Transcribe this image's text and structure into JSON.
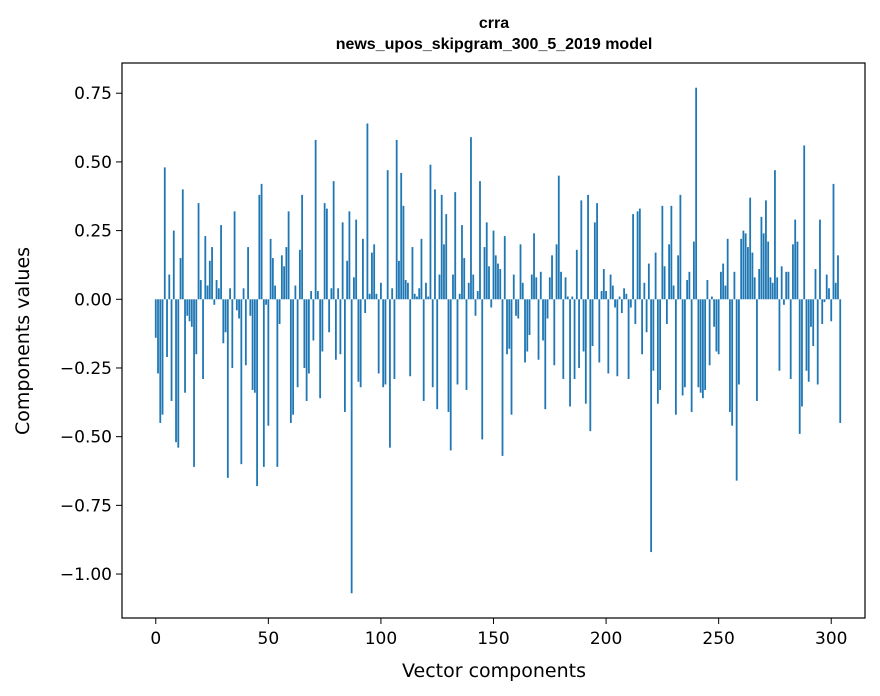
{
  "chart_data": {
    "type": "bar",
    "title": "crra",
    "subtitle": "news_upos_skipgram_300_5_2019 model",
    "xlabel": "Vector components",
    "ylabel": "Components values",
    "xlim": [
      -15,
      315
    ],
    "ylim": [
      -1.16,
      0.86
    ],
    "xticks": [
      0,
      50,
      100,
      150,
      200,
      250,
      300
    ],
    "yticks": [
      -1.0,
      -0.75,
      -0.5,
      -0.25,
      0.0,
      0.25,
      0.5,
      0.75
    ],
    "ytick_labels": [
      "−1.00",
      "−0.75",
      "−0.50",
      "−0.25",
      "0.00",
      "0.25",
      "0.50",
      "0.75"
    ],
    "xtick_labels": [
      "0",
      "50",
      "100",
      "150",
      "200",
      "250",
      "300"
    ],
    "bar_color": "#1f77b4",
    "grid": false,
    "values": [
      -0.14,
      -0.27,
      -0.45,
      -0.42,
      0.48,
      -0.21,
      0.09,
      -0.37,
      0.25,
      -0.52,
      -0.54,
      0.15,
      0.4,
      -0.34,
      -0.06,
      -0.08,
      -0.1,
      -0.61,
      -0.2,
      0.35,
      0.07,
      -0.29,
      0.23,
      0.05,
      0.14,
      0.19,
      -0.02,
      0.07,
      0.04,
      0.27,
      -0.16,
      -0.12,
      -0.65,
      0.04,
      -0.25,
      0.32,
      -0.04,
      -0.07,
      -0.6,
      0.04,
      -0.24,
      0.19,
      -0.06,
      -0.33,
      -0.34,
      -0.68,
      0.38,
      0.42,
      -0.61,
      -0.02,
      -0.46,
      0.22,
      0.15,
      0.05,
      -0.61,
      -0.09,
      0.16,
      0.12,
      0.19,
      0.32,
      -0.45,
      -0.42,
      0.05,
      -0.32,
      0.18,
      0.38,
      -0.25,
      -0.37,
      -0.27,
      0.03,
      -0.15,
      0.58,
      0.03,
      -0.36,
      -0.19,
      0.35,
      0.33,
      -0.12,
      0.04,
      0.43,
      -0.22,
      0.04,
      -0.2,
      0.28,
      -0.41,
      0.14,
      0.32,
      -1.07,
      0.08,
      0.29,
      -0.3,
      -0.32,
      0.22,
      -0.05,
      0.64,
      0.02,
      0.17,
      0.2,
      0.02,
      -0.27,
      0.06,
      -0.32,
      -0.31,
      0.47,
      -0.54,
      0.04,
      -0.29,
      0.58,
      0.14,
      0.46,
      0.34,
      0.07,
      0.06,
      -0.28,
      0.19,
      0.02,
      0.01,
      0.04,
      0.22,
      -0.37,
      0.06,
      0.01,
      0.49,
      -0.32,
      0.4,
      -0.4,
      0.09,
      0.38,
      0.2,
      0.31,
      -0.41,
      -0.55,
      0.09,
      0.39,
      -0.31,
      0.02,
      0.27,
      0.15,
      -0.33,
      0.06,
      0.59,
      0.09,
      -0.06,
      0.03,
      0.43,
      -0.51,
      0.19,
      0.28,
      0.12,
      -0.03,
      0.25,
      0.16,
      0.13,
      0.11,
      -0.57,
      0.23,
      -0.2,
      -0.18,
      -0.42,
      0.09,
      -0.06,
      -0.07,
      0.2,
      0.06,
      -0.23,
      -0.19,
      -0.13,
      0.09,
      0.24,
      0.08,
      -0.22,
      0.1,
      -0.15,
      -0.4,
      -0.07,
      0.08,
      0.16,
      -0.24,
      0.2,
      0.45,
      0.1,
      -0.29,
      0.08,
      0.01,
      -0.39,
      0.01,
      -0.29,
      0.18,
      -0.25,
      0.36,
      -0.19,
      -0.38,
      0.38,
      -0.48,
      -0.17,
      0.28,
      0.35,
      -0.23,
      0.03,
      0.11,
      0.03,
      -0.27,
      0.09,
      0.05,
      -0.03,
      -0.28,
      0.01,
      -0.05,
      0.04,
      0.02,
      -0.29,
      -0.03,
      0.31,
      -0.09,
      0.32,
      0.33,
      -0.2,
      0.06,
      -0.12,
      0.13,
      -0.92,
      -0.26,
      0.17,
      -0.38,
      -0.33,
      0.34,
      0.12,
      -0.09,
      0.2,
      0.34,
      0.05,
      -0.42,
      0.16,
      0.38,
      -0.35,
      -0.32,
      0.07,
      0.1,
      -0.41,
      0.21,
      0.77,
      -0.32,
      -0.34,
      -0.36,
      -0.33,
      0.07,
      -0.24,
      0.01,
      -0.1,
      -0.19,
      -0.2,
      0.1,
      0.13,
      0.05,
      0.22,
      -0.41,
      -0.46,
      0.1,
      -0.66,
      -0.31,
      0.22,
      0.25,
      0.24,
      0.19,
      0.37,
      0.17,
      0.08,
      -0.37,
      0.11,
      0.3,
      0.24,
      0.36,
      0.21,
      0.08,
      0.06,
      0.47,
      0.08,
      -0.26,
      0.12,
      -0.02,
      0.1,
      0.1,
      -0.29,
      0.2,
      0.29,
      0.21,
      -0.49,
      -0.39,
      0.56,
      -0.26,
      -0.3,
      -0.1,
      -0.17,
      0.11,
      -0.31,
      0.29,
      -0.09,
      -0.01,
      0.09,
      0.04,
      -0.08,
      0.42,
      0.06,
      0.16,
      -0.45
    ]
  }
}
